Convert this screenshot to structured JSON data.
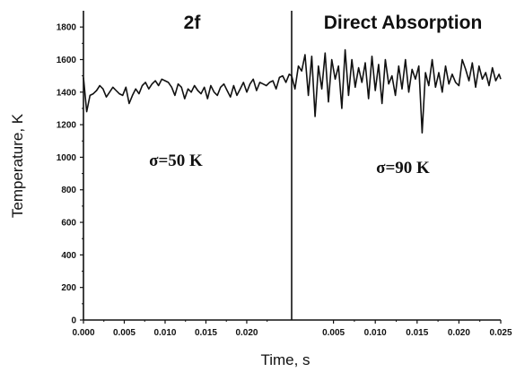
{
  "chart_data": {
    "type": "line",
    "ylabel": "Temperature, K",
    "xlabel": "Time, s",
    "ylim": [
      0,
      1900
    ],
    "yticks": [
      0,
      200,
      400,
      600,
      800,
      1000,
      1200,
      1400,
      1600,
      1800
    ],
    "ytick_labels": [
      "0",
      "200",
      "400",
      "600",
      "800",
      "1000",
      "1200",
      "1400",
      "1600",
      "1800"
    ],
    "grid": false,
    "panels": [
      {
        "title": "2f",
        "annotation": "σ=50 K",
        "xlim": [
          0.0,
          0.0255
        ],
        "xticks": [
          0.0,
          0.005,
          0.01,
          0.015,
          0.02
        ],
        "xtick_labels": [
          "0.000",
          "0.005",
          "0.010",
          "0.015",
          "0.020"
        ],
        "series": [
          {
            "x": [
              0.0,
              0.0004,
              0.0008,
              0.0012,
              0.0016,
              0.002,
              0.0024,
              0.0028,
              0.0032,
              0.0036,
              0.004,
              0.0044,
              0.0048,
              0.0052,
              0.0056,
              0.006,
              0.0064,
              0.0068,
              0.0072,
              0.0076,
              0.008,
              0.0084,
              0.0088,
              0.0092,
              0.0096,
              0.01,
              0.0104,
              0.0108,
              0.0112,
              0.0116,
              0.012,
              0.0124,
              0.0128,
              0.0132,
              0.0136,
              0.014,
              0.0144,
              0.0148,
              0.0152,
              0.0156,
              0.016,
              0.0164,
              0.0168,
              0.0172,
              0.0176,
              0.018,
              0.0184,
              0.0188,
              0.0192,
              0.0196,
              0.02,
              0.0204,
              0.0208,
              0.0212,
              0.0216,
              0.022,
              0.0224,
              0.0228,
              0.0232,
              0.0236,
              0.024,
              0.0244,
              0.0248,
              0.0252,
              0.0255
            ],
            "y": [
              1490,
              1280,
              1380,
              1390,
              1410,
              1440,
              1420,
              1370,
              1400,
              1430,
              1410,
              1390,
              1380,
              1430,
              1330,
              1380,
              1420,
              1390,
              1440,
              1460,
              1420,
              1450,
              1470,
              1440,
              1480,
              1470,
              1460,
              1430,
              1380,
              1450,
              1430,
              1360,
              1420,
              1400,
              1440,
              1410,
              1390,
              1430,
              1360,
              1440,
              1400,
              1380,
              1430,
              1450,
              1410,
              1370,
              1440,
              1380,
              1420,
              1460,
              1400,
              1450,
              1480,
              1410,
              1460,
              1450,
              1440,
              1460,
              1470,
              1420,
              1490,
              1500,
              1460,
              1510,
              1500
            ]
          }
        ]
      },
      {
        "title": "Direct Absorption",
        "annotation": "σ=90 K",
        "xlim": [
          0.0,
          0.025
        ],
        "xticks": [
          0.005,
          0.01,
          0.015,
          0.02,
          0.025
        ],
        "xtick_labels": [
          "0.005",
          "0.010",
          "0.015",
          "0.020",
          "0.025"
        ],
        "series": [
          {
            "x": [
              0.0,
              0.0004,
              0.0008,
              0.0012,
              0.0016,
              0.002,
              0.0024,
              0.0028,
              0.0032,
              0.0036,
              0.004,
              0.0044,
              0.0048,
              0.0052,
              0.0056,
              0.006,
              0.0064,
              0.0068,
              0.0072,
              0.0076,
              0.008,
              0.0084,
              0.0088,
              0.0092,
              0.0096,
              0.01,
              0.0104,
              0.0108,
              0.0112,
              0.0116,
              0.012,
              0.0124,
              0.0128,
              0.0132,
              0.0136,
              0.014,
              0.0144,
              0.0148,
              0.0152,
              0.0156,
              0.016,
              0.0164,
              0.0168,
              0.0172,
              0.0176,
              0.018,
              0.0184,
              0.0188,
              0.0192,
              0.0196,
              0.02,
              0.0204,
              0.0208,
              0.0212,
              0.0216,
              0.022,
              0.0224,
              0.0228,
              0.0232,
              0.0236,
              0.024,
              0.0244,
              0.0248,
              0.025
            ],
            "y": [
              1500,
              1420,
              1560,
              1530,
              1630,
              1380,
              1620,
              1250,
              1560,
              1420,
              1640,
              1340,
              1600,
              1480,
              1560,
              1300,
              1660,
              1380,
              1600,
              1430,
              1550,
              1460,
              1580,
              1360,
              1620,
              1410,
              1570,
              1330,
              1600,
              1450,
              1500,
              1380,
              1560,
              1420,
              1600,
              1400,
              1540,
              1480,
              1560,
              1150,
              1520,
              1440,
              1600,
              1430,
              1520,
              1400,
              1560,
              1450,
              1510,
              1460,
              1440,
              1600,
              1540,
              1470,
              1580,
              1430,
              1560,
              1480,
              1520,
              1440,
              1550,
              1470,
              1510,
              1480
            ]
          }
        ]
      }
    ]
  }
}
